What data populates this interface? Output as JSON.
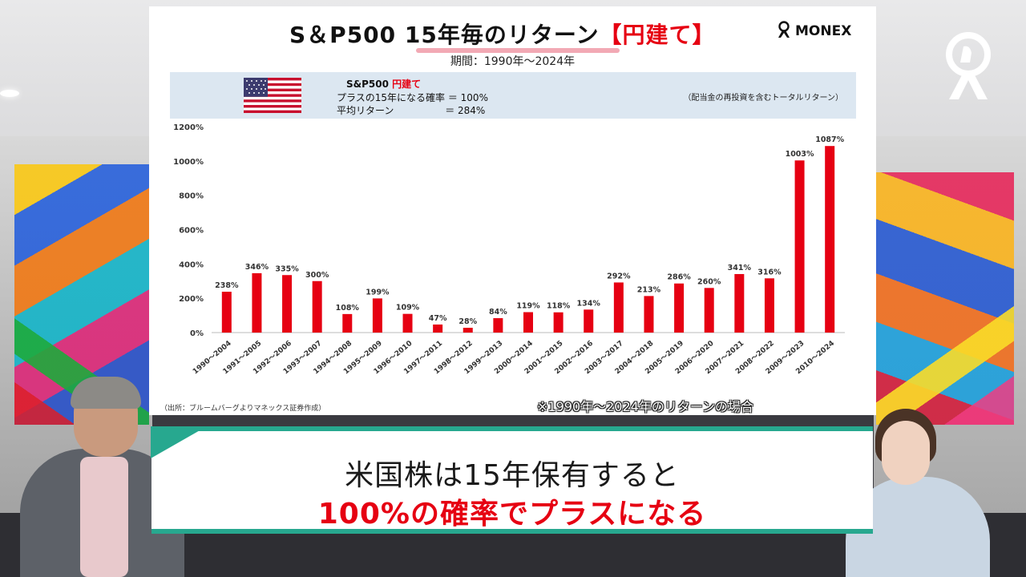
{
  "slide": {
    "title_prefix": "S＆P500",
    "title_highlight": "15年毎のリターン",
    "title_suffix": "【円建て】",
    "period": "期間：1990年～2024年",
    "brand": "MONEX",
    "info": {
      "name": "S&P500",
      "name_tag": "円建て",
      "probability_line": "プラスの15年になる確率 ＝ 100%",
      "average_line": "平均リターン　　　　　 ＝ 284%",
      "note": "（配当金の再投資を含むトータルリターン）"
    },
    "source": "（出所：ブルームバーグよりマネックス証券作成）",
    "caption": "※1990年～2024年のリターンの場合"
  },
  "lower_third": {
    "line1": "米国株は15年保有すると",
    "line2": "100%の確率でプラスになる"
  },
  "colors": {
    "bar": "#e60012",
    "accent": "#27a88f",
    "band": "#dce7f1"
  },
  "chart_data": {
    "type": "bar",
    "categories": [
      "1990～2004",
      "1991～2005",
      "1992～2006",
      "1993～2007",
      "1994～2008",
      "1995～2009",
      "1996～2010",
      "1997～2011",
      "1998～2012",
      "1999～2013",
      "2000～2014",
      "2001～2015",
      "2002～2016",
      "2003～2017",
      "2004～2018",
      "2005～2019",
      "2006～2020",
      "2007～2021",
      "2008～2022",
      "2009～2023",
      "2010～2024"
    ],
    "values": [
      238,
      346,
      335,
      300,
      108,
      199,
      109,
      47,
      28,
      84,
      119,
      118,
      134,
      292,
      213,
      286,
      260,
      341,
      316,
      1003,
      1087
    ],
    "value_labels": [
      "238%",
      "346%",
      "335%",
      "300%",
      "108%",
      "199%",
      "109%",
      "47%",
      "28%",
      "84%",
      "119%",
      "118%",
      "134%",
      "292%",
      "213%",
      "286%",
      "260%",
      "341%",
      "316%",
      "1003%",
      "1087%"
    ],
    "y_ticks": [
      0,
      200,
      400,
      600,
      800,
      1000,
      1200
    ],
    "y_tick_labels": [
      "0%",
      "200%",
      "400%",
      "600%",
      "800%",
      "1000%",
      "1200%"
    ],
    "ylim": [
      0,
      1200
    ],
    "grid": false,
    "title": "",
    "xlabel": "",
    "ylabel": ""
  }
}
